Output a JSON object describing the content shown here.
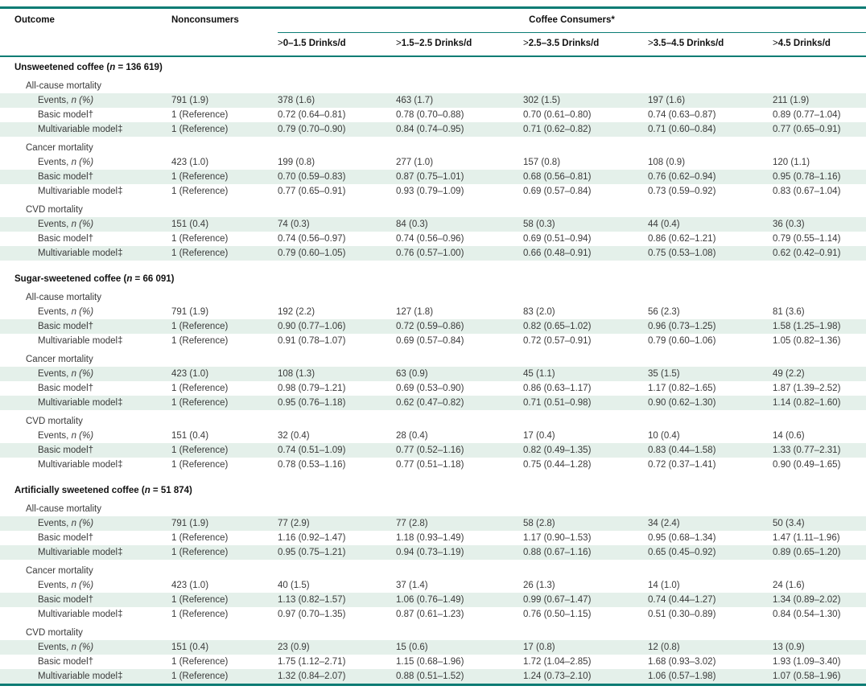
{
  "header": {
    "outcome": "Outcome",
    "nonconsumers": "Nonconsumers",
    "consumers_group": "Coffee Consumers*",
    "consumer_columns": [
      {
        "prefix": ">",
        "label": "0–1.5 Drinks/d"
      },
      {
        "prefix": ">",
        "label": "1.5–2.5 Drinks/d"
      },
      {
        "prefix": ">",
        "label": "2.5–3.5 Drinks/d"
      },
      {
        "prefix": ">",
        "label": "3.5–4.5 Drinks/d"
      },
      {
        "prefix": ">",
        "label": "4.5 Drinks/d"
      }
    ]
  },
  "row_labels": {
    "events_prefix": "Events, ",
    "events_italic": "n (%)",
    "basic_model": "Basic model†",
    "multivariable_model": "Multivariable model‡"
  },
  "colors": {
    "teal_rule": "#0B7C74",
    "row_shade": "#E4F0EA",
    "body_text": "#3a3a3a",
    "header_text": "#111111"
  },
  "sections": [
    {
      "title_prefix": "Unsweetened coffee (",
      "title_n": "n",
      "title_suffix": " = 136 619)",
      "subsections": [
        {
          "label": "All-cause mortality",
          "events": {
            "shaded": true,
            "values": [
              "791 (1.9)",
              "378 (1.6)",
              "463 (1.7)",
              "302 (1.5)",
              "197 (1.6)",
              "211 (1.9)"
            ]
          },
          "basic": {
            "shaded": false,
            "values": [
              "1 (Reference)",
              "0.72 (0.64–0.81)",
              "0.78 (0.70–0.88)",
              "0.70 (0.61–0.80)",
              "0.74 (0.63–0.87)",
              "0.89 (0.77–1.04)"
            ]
          },
          "multivariable": {
            "shaded": true,
            "values": [
              "1 (Reference)",
              "0.79 (0.70–0.90)",
              "0.84 (0.74–0.95)",
              "0.71 (0.62–0.82)",
              "0.71 (0.60–0.84)",
              "0.77 (0.65–0.91)"
            ]
          }
        },
        {
          "label": "Cancer mortality",
          "events": {
            "shaded": false,
            "values": [
              "423 (1.0)",
              "199 (0.8)",
              "277 (1.0)",
              "157 (0.8)",
              "108 (0.9)",
              "120 (1.1)"
            ]
          },
          "basic": {
            "shaded": true,
            "values": [
              "1 (Reference)",
              "0.70 (0.59–0.83)",
              "0.87 (0.75–1.01)",
              "0.68 (0.56–0.81)",
              "0.76 (0.62–0.94)",
              "0.95 (0.78–1.16)"
            ]
          },
          "multivariable": {
            "shaded": false,
            "values": [
              "1 (Reference)",
              "0.77 (0.65–0.91)",
              "0.93 (0.79–1.09)",
              "0.69 (0.57–0.84)",
              "0.73 (0.59–0.92)",
              "0.83 (0.67–1.04)"
            ]
          }
        },
        {
          "label": "CVD mortality",
          "events": {
            "shaded": true,
            "values": [
              "151 (0.4)",
              "74 (0.3)",
              "84 (0.3)",
              "58 (0.3)",
              "44 (0.4)",
              "36 (0.3)"
            ]
          },
          "basic": {
            "shaded": false,
            "values": [
              "1 (Reference)",
              "0.74 (0.56–0.97)",
              "0.74 (0.56–0.96)",
              "0.69 (0.51–0.94)",
              "0.86 (0.62–1.21)",
              "0.79 (0.55–1.14)"
            ]
          },
          "multivariable": {
            "shaded": true,
            "values": [
              "1 (Reference)",
              "0.79 (0.60–1.05)",
              "0.76 (0.57–1.00)",
              "0.66 (0.48–0.91)",
              "0.75 (0.53–1.08)",
              "0.62 (0.42–0.91)"
            ]
          }
        }
      ]
    },
    {
      "title_prefix": "Sugar-sweetened coffee (",
      "title_n": "n",
      "title_suffix": " = 66 091)",
      "subsections": [
        {
          "label": "All-cause mortality",
          "events": {
            "shaded": false,
            "values": [
              "791 (1.9)",
              "192 (2.2)",
              "127 (1.8)",
              "83 (2.0)",
              "56 (2.3)",
              "81 (3.6)"
            ]
          },
          "basic": {
            "shaded": true,
            "values": [
              "1 (Reference)",
              "0.90 (0.77–1.06)",
              "0.72 (0.59–0.86)",
              "0.82 (0.65–1.02)",
              "0.96 (0.73–1.25)",
              "1.58 (1.25–1.98)"
            ]
          },
          "multivariable": {
            "shaded": false,
            "values": [
              "1 (Reference)",
              "0.91 (0.78–1.07)",
              "0.69 (0.57–0.84)",
              "0.72 (0.57–0.91)",
              "0.79 (0.60–1.06)",
              "1.05 (0.82–1.36)"
            ]
          }
        },
        {
          "label": "Cancer mortality",
          "events": {
            "shaded": true,
            "values": [
              "423 (1.0)",
              "108 (1.3)",
              "63 (0.9)",
              "45 (1.1)",
              "35 (1.5)",
              "49 (2.2)"
            ]
          },
          "basic": {
            "shaded": false,
            "values": [
              "1 (Reference)",
              "0.98 (0.79–1.21)",
              "0.69 (0.53–0.90)",
              "0.86 (0.63–1.17)",
              "1.17 (0.82–1.65)",
              "1.87 (1.39–2.52)"
            ]
          },
          "multivariable": {
            "shaded": true,
            "values": [
              "1 (Reference)",
              "0.95 (0.76–1.18)",
              "0.62 (0.47–0.82)",
              "0.71 (0.51–0.98)",
              "0.90 (0.62–1.30)",
              "1.14 (0.82–1.60)"
            ]
          }
        },
        {
          "label": "CVD mortality",
          "events": {
            "shaded": false,
            "values": [
              "151 (0.4)",
              "32 (0.4)",
              "28 (0.4)",
              "17 (0.4)",
              "10 (0.4)",
              "14 (0.6)"
            ]
          },
          "basic": {
            "shaded": true,
            "values": [
              "1 (Reference)",
              "0.74 (0.51–1.09)",
              "0.77 (0.52–1.16)",
              "0.82 (0.49–1.35)",
              "0.83 (0.44–1.58)",
              "1.33 (0.77–2.31)"
            ]
          },
          "multivariable": {
            "shaded": false,
            "values": [
              "1 (Reference)",
              "0.78 (0.53–1.16)",
              "0.77 (0.51–1.18)",
              "0.75 (0.44–1.28)",
              "0.72 (0.37–1.41)",
              "0.90 (0.49–1.65)"
            ]
          }
        }
      ]
    },
    {
      "title_prefix": "Artificially sweetened coffee (",
      "title_n": "n",
      "title_suffix": " = 51 874)",
      "subsections": [
        {
          "label": "All-cause mortality",
          "events": {
            "shaded": true,
            "values": [
              "791 (1.9)",
              "77 (2.9)",
              "77 (2.8)",
              "58 (2.8)",
              "34 (2.4)",
              "50 (3.4)"
            ]
          },
          "basic": {
            "shaded": false,
            "values": [
              "1 (Reference)",
              "1.16 (0.92–1.47)",
              "1.18 (0.93–1.49)",
              "1.17 (0.90–1.53)",
              "0.95 (0.68–1.34)",
              "1.47 (1.11–1.96)"
            ]
          },
          "multivariable": {
            "shaded": true,
            "values": [
              "1 (Reference)",
              "0.95 (0.75–1.21)",
              "0.94 (0.73–1.19)",
              "0.88 (0.67–1.16)",
              "0.65 (0.45–0.92)",
              "0.89 (0.65–1.20)"
            ]
          }
        },
        {
          "label": "Cancer mortality",
          "events": {
            "shaded": false,
            "values": [
              "423 (1.0)",
              "40 (1.5)",
              "37 (1.4)",
              "26 (1.3)",
              "14 (1.0)",
              "24 (1.6)"
            ]
          },
          "basic": {
            "shaded": true,
            "values": [
              "1 (Reference)",
              "1.13 (0.82–1.57)",
              "1.06 (0.76–1.49)",
              "0.99 (0.67–1.47)",
              "0.74 (0.44–1.27)",
              "1.34 (0.89–2.02)"
            ]
          },
          "multivariable": {
            "shaded": false,
            "values": [
              "1 (Reference)",
              "0.97 (0.70–1.35)",
              "0.87 (0.61–1.23)",
              "0.76 (0.50–1.15)",
              "0.51 (0.30–0.89)",
              "0.84 (0.54–1.30)"
            ]
          }
        },
        {
          "label": "CVD mortality",
          "events": {
            "shaded": true,
            "values": [
              "151 (0.4)",
              "23 (0.9)",
              "15 (0.6)",
              "17 (0.8)",
              "12 (0.8)",
              "13 (0.9)"
            ]
          },
          "basic": {
            "shaded": false,
            "values": [
              "1 (Reference)",
              "1.75 (1.12–2.71)",
              "1.15 (0.68–1.96)",
              "1.72 (1.04–2.85)",
              "1.68 (0.93–3.02)",
              "1.93 (1.09–3.40)"
            ]
          },
          "multivariable": {
            "shaded": true,
            "values": [
              "1 (Reference)",
              "1.32 (0.84–2.07)",
              "0.88 (0.51–1.52)",
              "1.24 (0.73–2.10)",
              "1.06 (0.57–1.98)",
              "1.07 (0.58–1.96)"
            ]
          }
        }
      ]
    }
  ]
}
